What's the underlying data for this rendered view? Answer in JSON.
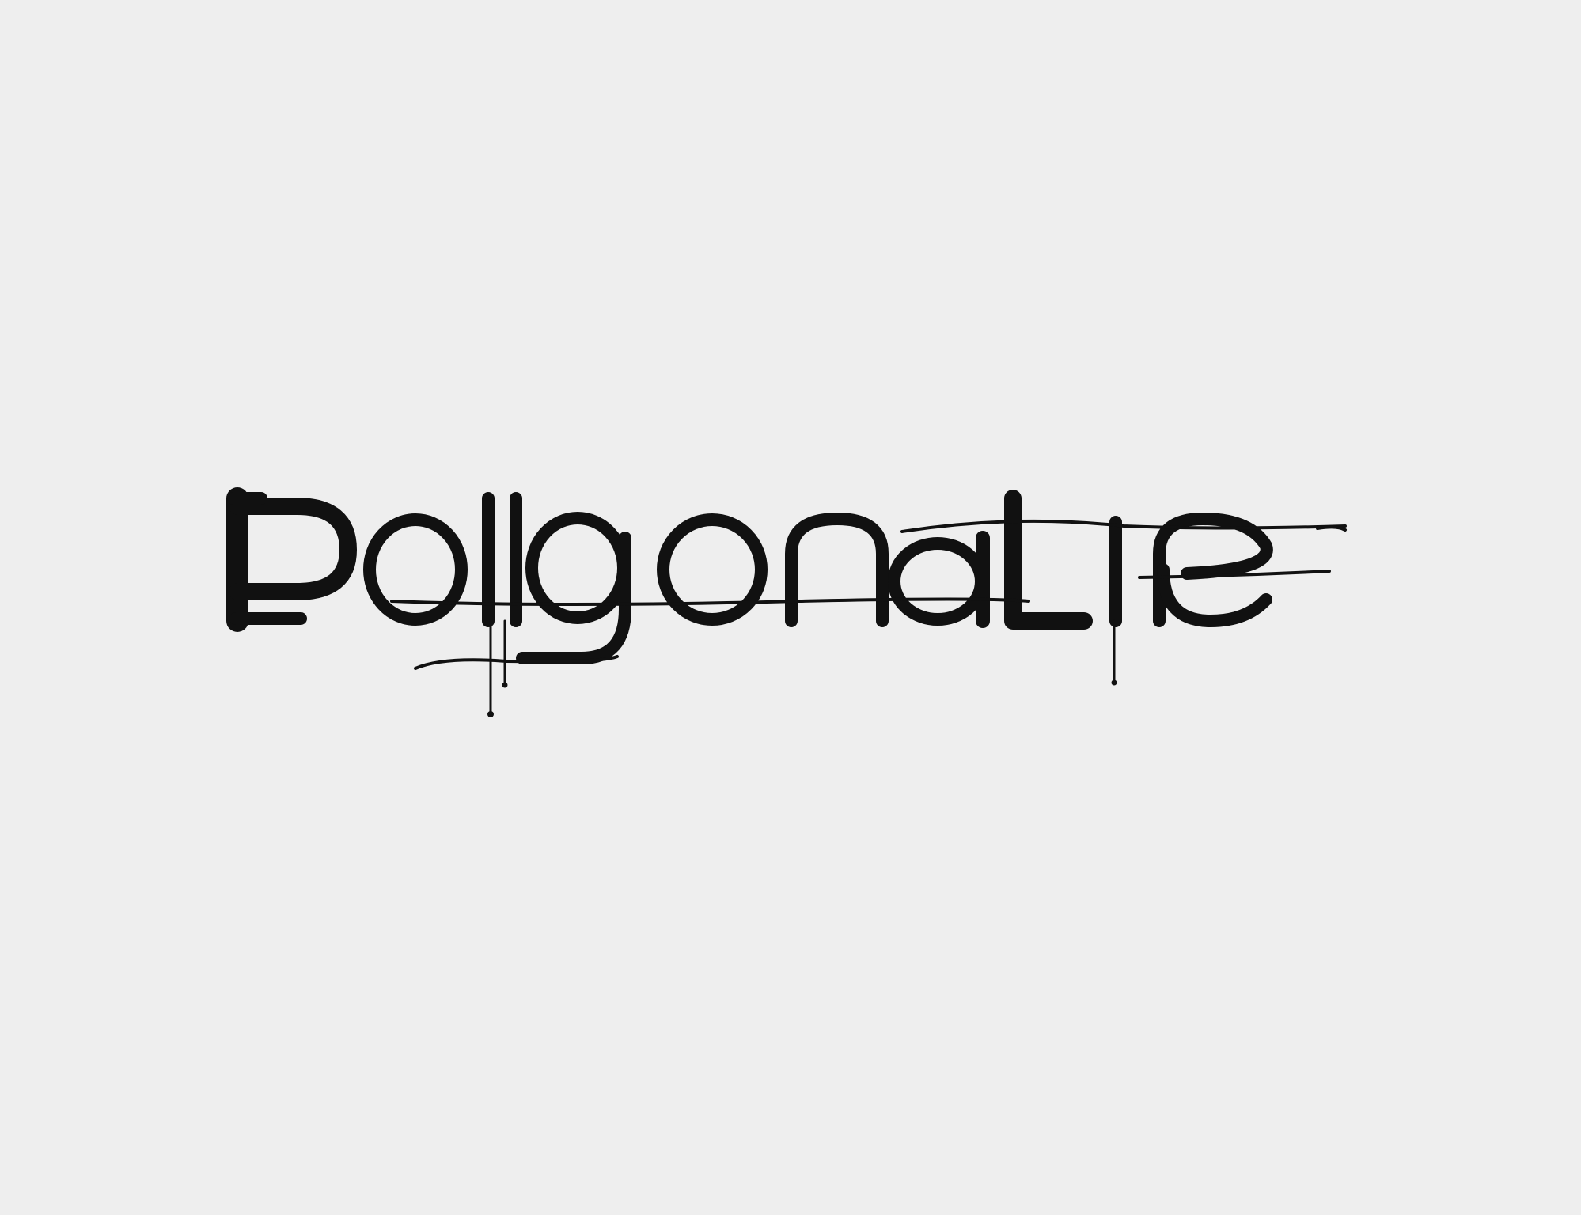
{
  "logo": {
    "text": "PoligonaLine",
    "ink_color": "#111111",
    "background_color": "#eeeeee"
  }
}
